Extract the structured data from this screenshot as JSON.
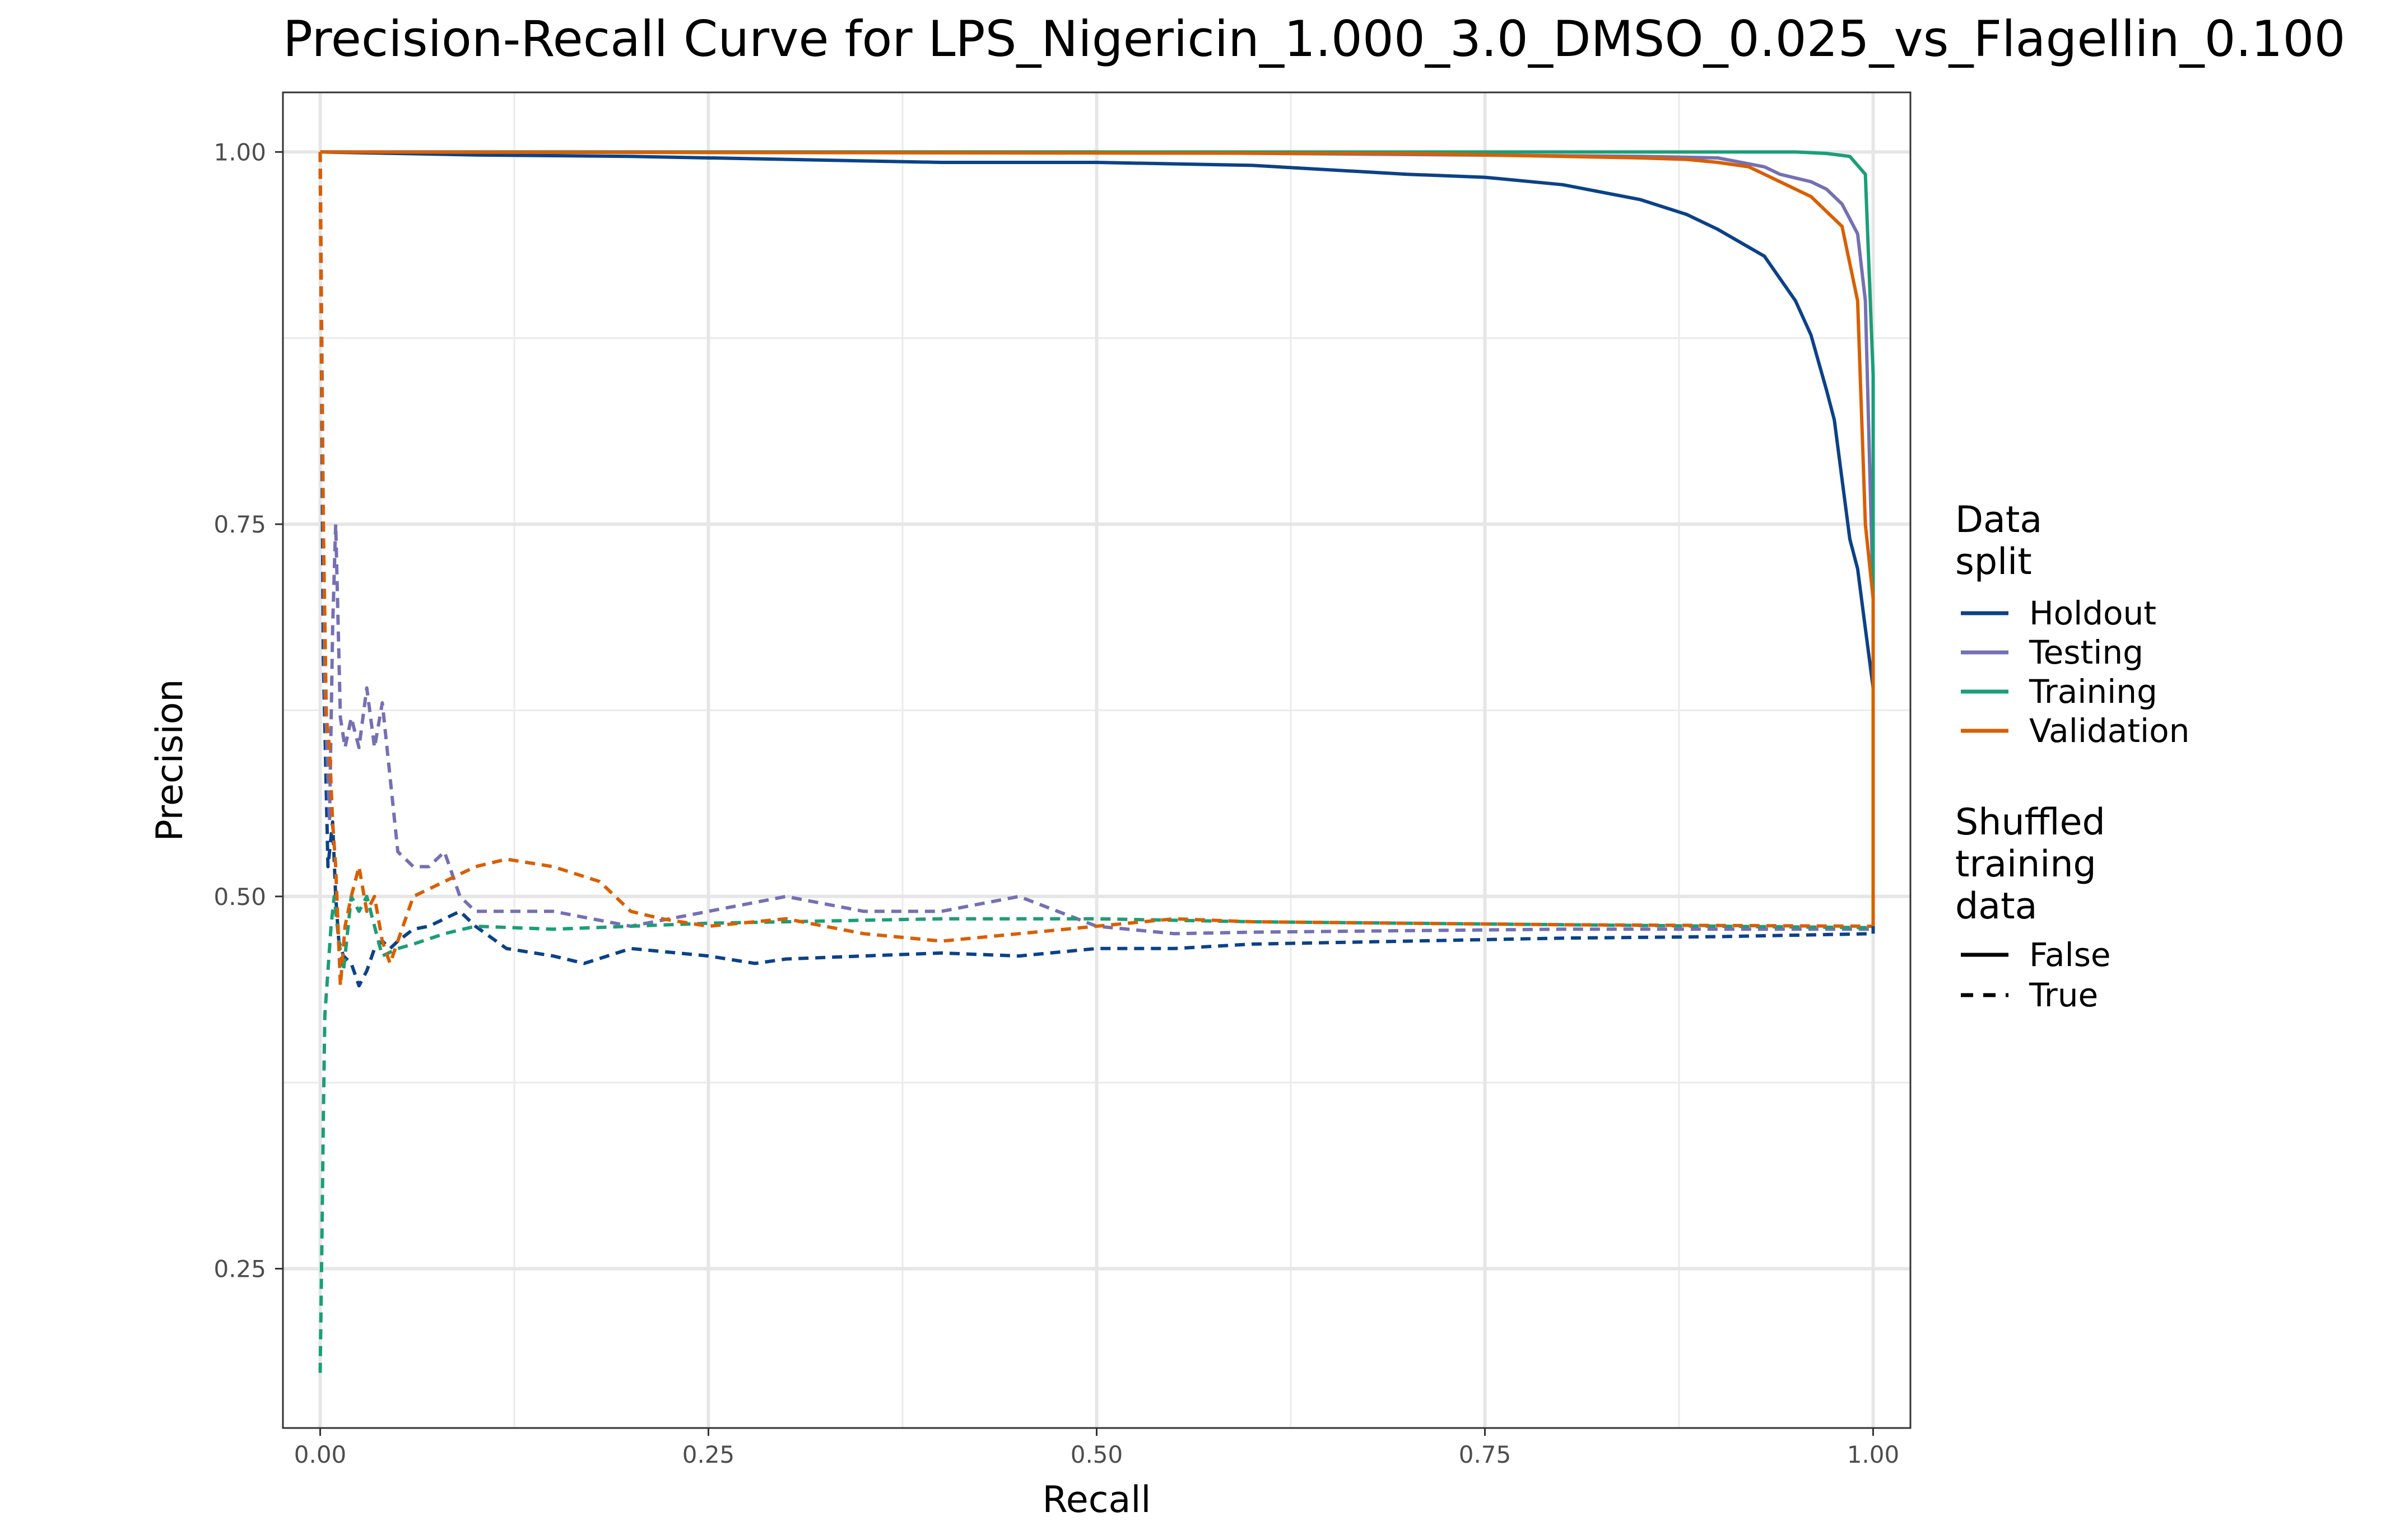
{
  "chart_data": {
    "type": "line",
    "title": "Precision-Recall Curve for LPS_Nigericin_1.000_3.0_DMSO_0.025_vs_Flagellin_0.100",
    "xlabel": "Recall",
    "ylabel": "Precision",
    "xlim": [
      -0.024,
      1.024
    ],
    "ylim": [
      0.143,
      1.04
    ],
    "xticks": [
      0.0,
      0.25,
      0.5,
      0.75,
      1.0
    ],
    "xtick_labels": [
      "0.00",
      "0.25",
      "0.50",
      "0.75",
      "1.00"
    ],
    "yticks": [
      0.25,
      0.5,
      0.75,
      1.0
    ],
    "ytick_labels": [
      "0.25",
      "0.50",
      "0.75",
      "1.00"
    ],
    "grid": true,
    "legend_position": "right",
    "legend": {
      "color_title": [
        "Data",
        "split"
      ],
      "linetype_title": [
        "Shuffled",
        "training",
        "data"
      ],
      "linetype_labels": [
        "False",
        "True"
      ]
    },
    "series": [
      {
        "name": "Holdout",
        "color": "#0b4288",
        "shuffled": false,
        "x": [
          0,
          0.05,
          0.1,
          0.2,
          0.3,
          0.4,
          0.5,
          0.6,
          0.7,
          0.75,
          0.8,
          0.85,
          0.88,
          0.9,
          0.93,
          0.95,
          0.96,
          0.97,
          0.975,
          0.98,
          0.985,
          0.99,
          0.995,
          1.0,
          1.0
        ],
        "y": [
          1.0,
          0.999,
          0.998,
          0.997,
          0.995,
          0.993,
          0.993,
          0.991,
          0.985,
          0.983,
          0.978,
          0.968,
          0.958,
          0.948,
          0.93,
          0.9,
          0.877,
          0.84,
          0.82,
          0.78,
          0.74,
          0.72,
          0.68,
          0.64,
          0.475
        ]
      },
      {
        "name": "Testing",
        "color": "#7570b3",
        "shuffled": false,
        "x": [
          0,
          0.5,
          0.85,
          0.9,
          0.93,
          0.94,
          0.96,
          0.97,
          0.98,
          0.99,
          0.995,
          1.0,
          1.0
        ],
        "y": [
          1.0,
          1.0,
          0.997,
          0.996,
          0.99,
          0.985,
          0.98,
          0.975,
          0.965,
          0.945,
          0.9,
          0.7,
          0.48
        ]
      },
      {
        "name": "Training",
        "color": "#1b9e77",
        "shuffled": false,
        "x": [
          0,
          0.5,
          0.9,
          0.95,
          0.97,
          0.985,
          0.995,
          1.0,
          1.0
        ],
        "y": [
          1.0,
          1.0,
          1.0,
          1.0,
          0.999,
          0.997,
          0.985,
          0.85,
          0.48
        ]
      },
      {
        "name": "Validation",
        "color": "#d95f02",
        "shuffled": false,
        "x": [
          0,
          0.7,
          0.8,
          0.85,
          0.88,
          0.9,
          0.92,
          0.93,
          0.94,
          0.96,
          0.97,
          0.98,
          0.99,
          0.995,
          1.0,
          1.0
        ],
        "y": [
          1.0,
          0.999,
          0.997,
          0.996,
          0.995,
          0.993,
          0.99,
          0.985,
          0.98,
          0.97,
          0.96,
          0.95,
          0.9,
          0.75,
          0.7,
          0.48
        ]
      },
      {
        "name": "Holdout",
        "color": "#0b4288",
        "shuffled": true,
        "x": [
          0,
          0.002,
          0.005,
          0.008,
          0.01,
          0.012,
          0.015,
          0.02,
          0.025,
          0.03,
          0.035,
          0.04,
          0.045,
          0.05,
          0.06,
          0.07,
          0.08,
          0.09,
          0.1,
          0.12,
          0.15,
          0.17,
          0.2,
          0.25,
          0.28,
          0.3,
          0.35,
          0.4,
          0.45,
          0.5,
          0.55,
          0.6,
          0.7,
          0.8,
          0.9,
          1.0
        ],
        "y": [
          1.0,
          0.66,
          0.52,
          0.55,
          0.5,
          0.47,
          0.46,
          0.455,
          0.44,
          0.45,
          0.465,
          0.47,
          0.465,
          0.47,
          0.478,
          0.48,
          0.485,
          0.49,
          0.48,
          0.465,
          0.46,
          0.455,
          0.465,
          0.46,
          0.455,
          0.458,
          0.46,
          0.462,
          0.46,
          0.465,
          0.465,
          0.468,
          0.47,
          0.472,
          0.473,
          0.475
        ]
      },
      {
        "name": "Testing",
        "color": "#7570b3",
        "shuffled": true,
        "x": [
          0,
          0.003,
          0.006,
          0.008,
          0.01,
          0.013,
          0.016,
          0.02,
          0.025,
          0.03,
          0.035,
          0.04,
          0.045,
          0.05,
          0.06,
          0.07,
          0.08,
          0.09,
          0.1,
          0.12,
          0.15,
          0.2,
          0.25,
          0.3,
          0.35,
          0.4,
          0.45,
          0.5,
          0.55,
          0.6,
          0.7,
          0.8,
          1.0
        ],
        "y": [
          1.0,
          0.64,
          0.55,
          0.68,
          0.75,
          0.62,
          0.6,
          0.62,
          0.6,
          0.64,
          0.6,
          0.63,
          0.58,
          0.53,
          0.52,
          0.52,
          0.53,
          0.5,
          0.49,
          0.49,
          0.49,
          0.48,
          0.49,
          0.5,
          0.49,
          0.49,
          0.5,
          0.48,
          0.475,
          0.476,
          0.477,
          0.478,
          0.478
        ]
      },
      {
        "name": "Training",
        "color": "#1b9e77",
        "shuffled": true,
        "x": [
          0,
          0.001,
          0.002,
          0.003,
          0.005,
          0.007,
          0.009,
          0.012,
          0.015,
          0.02,
          0.025,
          0.03,
          0.035,
          0.04,
          0.05,
          0.06,
          0.08,
          0.1,
          0.15,
          0.2,
          0.25,
          0.3,
          0.35,
          0.4,
          0.5,
          0.6,
          0.8,
          1.0
        ],
        "y": [
          0.18,
          0.26,
          0.35,
          0.42,
          0.45,
          0.48,
          0.5,
          0.47,
          0.45,
          0.5,
          0.49,
          0.5,
          0.48,
          0.46,
          0.465,
          0.468,
          0.475,
          0.48,
          0.478,
          0.48,
          0.482,
          0.483,
          0.484,
          0.485,
          0.485,
          0.483,
          0.481,
          0.479
        ]
      },
      {
        "name": "Validation",
        "color": "#d95f02",
        "shuffled": true,
        "x": [
          0,
          0.001,
          0.002,
          0.004,
          0.006,
          0.008,
          0.01,
          0.013,
          0.016,
          0.02,
          0.025,
          0.03,
          0.035,
          0.04,
          0.045,
          0.05,
          0.06,
          0.08,
          0.1,
          0.12,
          0.15,
          0.18,
          0.2,
          0.22,
          0.25,
          0.3,
          0.35,
          0.4,
          0.45,
          0.5,
          0.55,
          0.6,
          0.8,
          1.0
        ],
        "y": [
          1.0,
          0.85,
          0.75,
          0.62,
          0.6,
          0.55,
          0.52,
          0.44,
          0.48,
          0.5,
          0.52,
          0.49,
          0.5,
          0.47,
          0.455,
          0.47,
          0.5,
          0.51,
          0.52,
          0.525,
          0.52,
          0.51,
          0.49,
          0.485,
          0.48,
          0.485,
          0.475,
          0.47,
          0.475,
          0.48,
          0.485,
          0.483,
          0.481,
          0.48
        ]
      }
    ]
  }
}
